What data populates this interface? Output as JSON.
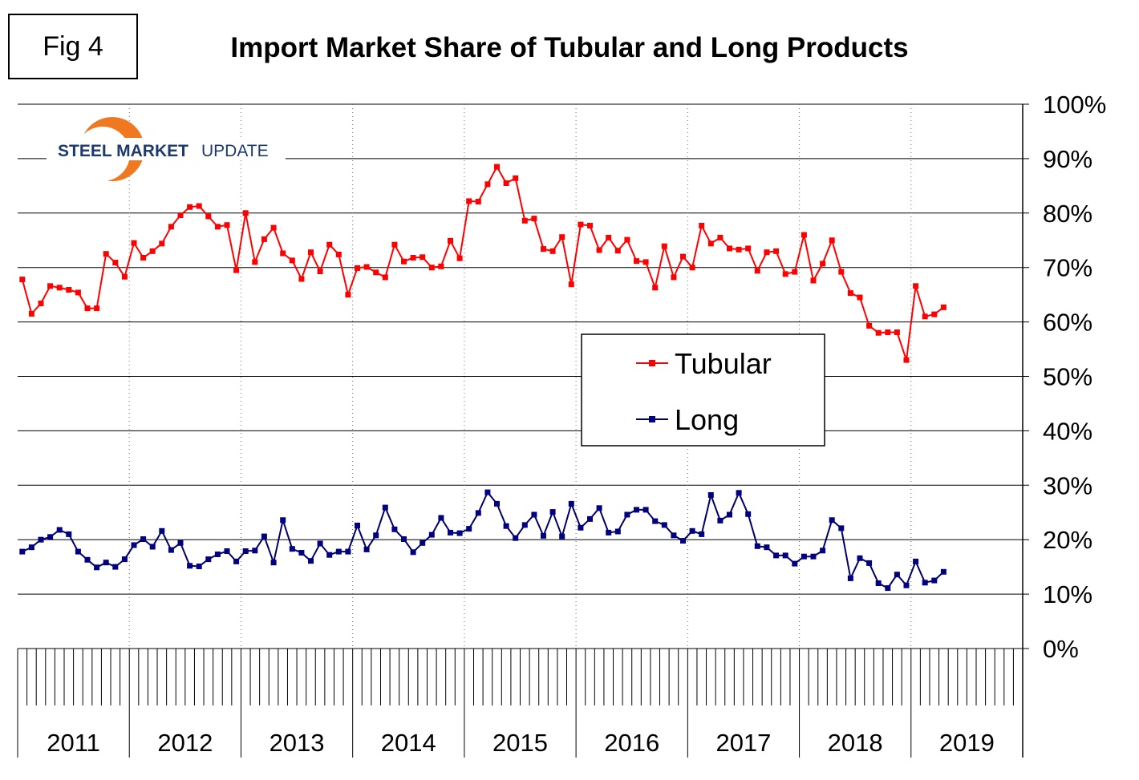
{
  "fig_label": "Fig 4",
  "logo": {
    "text_bold": "STEEL MARKET",
    "text_light": "UPDATE"
  },
  "colors": {
    "tubular": "#ff0000",
    "long": "#000066",
    "marker_long": "#000080",
    "grid": "#000000",
    "logo_orange": "#f07820",
    "logo_navy": "#1d3a6e"
  },
  "chart_data": {
    "type": "line",
    "title": "Import Market Share of Tubular and Long Products",
    "ylim": [
      0,
      100
    ],
    "y_ticks": [
      "0%",
      "10%",
      "20%",
      "30%",
      "40%",
      "50%",
      "60%",
      "70%",
      "80%",
      "90%",
      "100%"
    ],
    "y_axis_position": "right",
    "x_start": "2011-01",
    "year_labels": [
      "2011",
      "2012",
      "2013",
      "2014",
      "2015",
      "2016",
      "2017",
      "2018",
      "2019"
    ],
    "grid": true,
    "legend_position": "center-right",
    "series": [
      {
        "name": "Tubular",
        "values": [
          67.8,
          61.5,
          63.4,
          66.6,
          66.3,
          65.9,
          65.4,
          62.5,
          62.5,
          72.5,
          70.9,
          68.3,
          74.5,
          71.8,
          73.0,
          74.4,
          77.5,
          79.6,
          81.1,
          81.3,
          79.4,
          77.5,
          77.8,
          69.5,
          80.0,
          71.0,
          75.2,
          77.3,
          72.6,
          71.3,
          67.9,
          72.8,
          69.3,
          74.2,
          72.4,
          65.0,
          69.9,
          70.1,
          69.1,
          68.2,
          74.2,
          71.1,
          71.8,
          71.9,
          70.0,
          70.2,
          74.9,
          71.7,
          82.2,
          82.1,
          85.3,
          88.5,
          85.5,
          86.4,
          78.6,
          79.0,
          73.4,
          73.0,
          75.6,
          66.9,
          77.9,
          77.7,
          73.2,
          75.5,
          73.1,
          75.1,
          71.2,
          71.0,
          66.3,
          73.9,
          68.2,
          72.0,
          70.0,
          77.7,
          74.4,
          75.5,
          73.5,
          73.3,
          73.5,
          69.4,
          72.8,
          73.0,
          68.8,
          69.2,
          76.0,
          67.6,
          70.7,
          75.0,
          69.2,
          65.3,
          64.5,
          59.3,
          58.0,
          58.1,
          58.1,
          53.0,
          66.6,
          61.0,
          61.4,
          62.7
        ]
      },
      {
        "name": "Long",
        "values": [
          17.8,
          18.6,
          20.0,
          20.5,
          21.8,
          21.0,
          17.8,
          16.3,
          14.9,
          15.8,
          15.0,
          16.4,
          19.0,
          20.1,
          18.7,
          21.6,
          18.1,
          19.4,
          15.2,
          15.1,
          16.4,
          17.3,
          17.9,
          16.0,
          17.9,
          18.0,
          20.6,
          15.8,
          23.6,
          18.3,
          17.6,
          16.1,
          19.3,
          17.2,
          17.8,
          17.8,
          22.6,
          18.2,
          20.8,
          25.9,
          21.9,
          20.1,
          17.7,
          19.4,
          20.9,
          24.0,
          21.3,
          21.2,
          22.0,
          24.9,
          28.7,
          26.6,
          22.5,
          20.3,
          22.7,
          24.6,
          20.7,
          25.1,
          20.6,
          26.6,
          22.2,
          23.8,
          25.8,
          21.3,
          21.5,
          24.6,
          25.5,
          25.5,
          23.4,
          22.7,
          20.8,
          19.8,
          21.6,
          21.0,
          28.2,
          23.5,
          24.6,
          28.6,
          24.7,
          18.8,
          18.6,
          17.1,
          17.1,
          15.6,
          16.9,
          16.9,
          18.0,
          23.6,
          22.1,
          12.9,
          16.6,
          15.7,
          12.0,
          11.1,
          13.6,
          11.6,
          16.0,
          12.1,
          12.5,
          14.1
        ]
      }
    ]
  }
}
